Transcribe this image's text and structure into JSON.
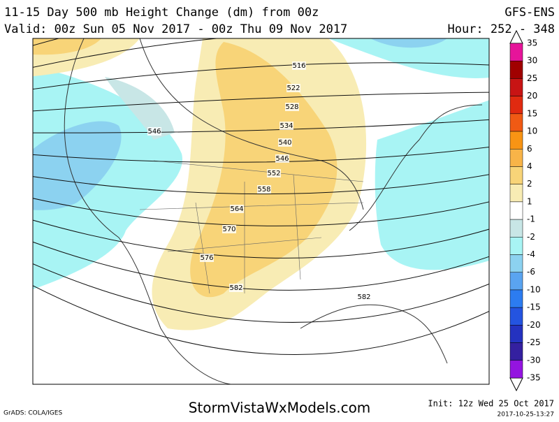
{
  "header": {
    "title": "11-15 Day 500 mb Height Change (dm) from 00z",
    "valid": "Valid: 00z Sun 05 Nov 2017 - 00z Thu 09 Nov 2017",
    "model": "GFS-ENS",
    "hour": "Hour: 252 - 348"
  },
  "contour_labels": [
    "516",
    "522",
    "528",
    "534",
    "540",
    "546",
    "552",
    "558",
    "564",
    "570",
    "576",
    "582",
    "582",
    "546"
  ],
  "colorbar": {
    "labels": [
      "35",
      "30",
      "25",
      "20",
      "15",
      "10",
      "6",
      "4",
      "2",
      "1",
      "-1",
      "-2",
      "-4",
      "-6",
      "-10",
      "-15",
      "-20",
      "-25",
      "-30",
      "-35"
    ],
    "colors": [
      "#e6149a",
      "#a00000",
      "#c81414",
      "#e02a10",
      "#f05a14",
      "#f89414",
      "#f8b448",
      "#f8d478",
      "#f8ecb4",
      "#ffffff",
      "#c8e6e6",
      "#a8f4f4",
      "#8cd2f0",
      "#5aa4f0",
      "#2c7cf0",
      "#2454e0",
      "#2432c0",
      "#3420a0",
      "#9414e0"
    ]
  },
  "footer": {
    "site": "StormVistaWxModels.com",
    "credit": "GrADS: COLA/IGES",
    "init": "Init: 12z Wed 25 Oct 2017",
    "stamp": "2017-10-25-13:27"
  }
}
